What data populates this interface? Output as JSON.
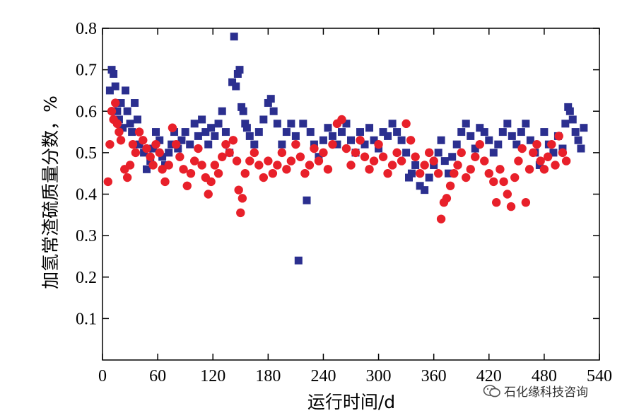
{
  "chart_data": {
    "type": "scatter",
    "title": "",
    "xlabel": "运行时间/d",
    "ylabel": "加氢常渣硫质量分数，%",
    "xlim": [
      0,
      540
    ],
    "ylim": [
      0,
      0.8
    ],
    "x_ticks": [
      "0",
      "60",
      "120",
      "180",
      "240",
      "300",
      "360",
      "420",
      "480",
      "540"
    ],
    "y_ticks": [
      "0.1",
      "0.2",
      "0.3",
      "0.4",
      "0.5",
      "0.6",
      "0.7",
      "0.8"
    ],
    "grid": false,
    "legend": "none",
    "series": [
      {
        "marker": "square",
        "color": "#2b2f8f",
        "points": [
          [
            8,
            0.65
          ],
          [
            10,
            0.7
          ],
          [
            12,
            0.69
          ],
          [
            14,
            0.66
          ],
          [
            16,
            0.6
          ],
          [
            18,
            0.58
          ],
          [
            20,
            0.62
          ],
          [
            22,
            0.56
          ],
          [
            25,
            0.65
          ],
          [
            27,
            0.6
          ],
          [
            30,
            0.57
          ],
          [
            32,
            0.55
          ],
          [
            35,
            0.62
          ],
          [
            38,
            0.58
          ],
          [
            40,
            0.52
          ],
          [
            45,
            0.5
          ],
          [
            48,
            0.46
          ],
          [
            52,
            0.48
          ],
          [
            55,
            0.51
          ],
          [
            58,
            0.55
          ],
          [
            62,
            0.53
          ],
          [
            65,
            0.49
          ],
          [
            68,
            0.47
          ],
          [
            72,
            0.5
          ],
          [
            75,
            0.52
          ],
          [
            78,
            0.55
          ],
          [
            82,
            0.51
          ],
          [
            86,
            0.53
          ],
          [
            90,
            0.55
          ],
          [
            95,
            0.52
          ],
          [
            100,
            0.57
          ],
          [
            104,
            0.54
          ],
          [
            108,
            0.58
          ],
          [
            112,
            0.55
          ],
          [
            115,
            0.52
          ],
          [
            118,
            0.56
          ],
          [
            122,
            0.54
          ],
          [
            126,
            0.57
          ],
          [
            130,
            0.6
          ],
          [
            134,
            0.55
          ],
          [
            138,
            0.5
          ],
          [
            141,
            0.67
          ],
          [
            143,
            0.78
          ],
          [
            145,
            0.66
          ],
          [
            147,
            0.69
          ],
          [
            149,
            0.7
          ],
          [
            151,
            0.61
          ],
          [
            153,
            0.6
          ],
          [
            155,
            0.57
          ],
          [
            157,
            0.56
          ],
          [
            160,
            0.54
          ],
          [
            165,
            0.52
          ],
          [
            170,
            0.55
          ],
          [
            175,
            0.58
          ],
          [
            180,
            0.62
          ],
          [
            183,
            0.63
          ],
          [
            186,
            0.6
          ],
          [
            190,
            0.57
          ],
          [
            195,
            0.52
          ],
          [
            200,
            0.55
          ],
          [
            205,
            0.57
          ],
          [
            210,
            0.54
          ],
          [
            213,
            0.24
          ],
          [
            218,
            0.57
          ],
          [
            222,
            0.385
          ],
          [
            226,
            0.55
          ],
          [
            230,
            0.52
          ],
          [
            235,
            0.49
          ],
          [
            240,
            0.53
          ],
          [
            245,
            0.56
          ],
          [
            250,
            0.54
          ],
          [
            255,
            0.52
          ],
          [
            260,
            0.55
          ],
          [
            265,
            0.57
          ],
          [
            270,
            0.53
          ],
          [
            275,
            0.5
          ],
          [
            280,
            0.55
          ],
          [
            285,
            0.52
          ],
          [
            290,
            0.56
          ],
          [
            295,
            0.53
          ],
          [
            300,
            0.51
          ],
          [
            305,
            0.55
          ],
          [
            310,
            0.54
          ],
          [
            315,
            0.57
          ],
          [
            320,
            0.55
          ],
          [
            325,
            0.53
          ],
          [
            330,
            0.5
          ],
          [
            333,
            0.44
          ],
          [
            336,
            0.45
          ],
          [
            340,
            0.47
          ],
          [
            345,
            0.42
          ],
          [
            350,
            0.41
          ],
          [
            355,
            0.44
          ],
          [
            360,
            0.47
          ],
          [
            365,
            0.5
          ],
          [
            368,
            0.53
          ],
          [
            372,
            0.48
          ],
          [
            376,
            0.45
          ],
          [
            380,
            0.49
          ],
          [
            385,
            0.52
          ],
          [
            390,
            0.55
          ],
          [
            395,
            0.57
          ],
          [
            400,
            0.54
          ],
          [
            405,
            0.51
          ],
          [
            410,
            0.56
          ],
          [
            415,
            0.55
          ],
          [
            420,
            0.53
          ],
          [
            425,
            0.5
          ],
          [
            430,
            0.52
          ],
          [
            435,
            0.55
          ],
          [
            440,
            0.57
          ],
          [
            445,
            0.54
          ],
          [
            450,
            0.52
          ],
          [
            455,
            0.55
          ],
          [
            460,
            0.57
          ],
          [
            465,
            0.53
          ],
          [
            470,
            0.5
          ],
          [
            475,
            0.47
          ],
          [
            480,
            0.55
          ],
          [
            485,
            0.52
          ],
          [
            490,
            0.5
          ],
          [
            495,
            0.54
          ],
          [
            500,
            0.51
          ],
          [
            503,
            0.57
          ],
          [
            506,
            0.61
          ],
          [
            508,
            0.6
          ],
          [
            511,
            0.58
          ],
          [
            514,
            0.55
          ],
          [
            517,
            0.53
          ],
          [
            520,
            0.51
          ],
          [
            523,
            0.56
          ]
        ]
      },
      {
        "marker": "circle",
        "color": "#e8202a",
        "points": [
          [
            6,
            0.43
          ],
          [
            8,
            0.52
          ],
          [
            10,
            0.6
          ],
          [
            12,
            0.58
          ],
          [
            14,
            0.62
          ],
          [
            16,
            0.57
          ],
          [
            18,
            0.55
          ],
          [
            20,
            0.53
          ],
          [
            24,
            0.46
          ],
          [
            27,
            0.44
          ],
          [
            30,
            0.47
          ],
          [
            33,
            0.52
          ],
          [
            36,
            0.5
          ],
          [
            40,
            0.55
          ],
          [
            44,
            0.53
          ],
          [
            48,
            0.51
          ],
          [
            52,
            0.49
          ],
          [
            55,
            0.47
          ],
          [
            58,
            0.52
          ],
          [
            62,
            0.5
          ],
          [
            65,
            0.46
          ],
          [
            68,
            0.43
          ],
          [
            72,
            0.47
          ],
          [
            76,
            0.56
          ],
          [
            80,
            0.52
          ],
          [
            84,
            0.49
          ],
          [
            88,
            0.46
          ],
          [
            92,
            0.42
          ],
          [
            96,
            0.45
          ],
          [
            100,
            0.48
          ],
          [
            104,
            0.51
          ],
          [
            108,
            0.47
          ],
          [
            112,
            0.44
          ],
          [
            115,
            0.4
          ],
          [
            118,
            0.43
          ],
          [
            122,
            0.47
          ],
          [
            126,
            0.45
          ],
          [
            130,
            0.49
          ],
          [
            134,
            0.52
          ],
          [
            138,
            0.5
          ],
          [
            142,
            0.53
          ],
          [
            146,
            0.48
          ],
          [
            148,
            0.41
          ],
          [
            150,
            0.355
          ],
          [
            152,
            0.39
          ],
          [
            155,
            0.45
          ],
          [
            160,
            0.48
          ],
          [
            165,
            0.5
          ],
          [
            170,
            0.47
          ],
          [
            175,
            0.44
          ],
          [
            180,
            0.48
          ],
          [
            185,
            0.45
          ],
          [
            190,
            0.47
          ],
          [
            195,
            0.5
          ],
          [
            200,
            0.46
          ],
          [
            205,
            0.48
          ],
          [
            210,
            0.52
          ],
          [
            215,
            0.49
          ],
          [
            220,
            0.45
          ],
          [
            225,
            0.47
          ],
          [
            230,
            0.51
          ],
          [
            235,
            0.48
          ],
          [
            240,
            0.5
          ],
          [
            245,
            0.46
          ],
          [
            250,
            0.52
          ],
          [
            255,
            0.57
          ],
          [
            260,
            0.58
          ],
          [
            265,
            0.51
          ],
          [
            270,
            0.47
          ],
          [
            275,
            0.5
          ],
          [
            280,
            0.53
          ],
          [
            285,
            0.49
          ],
          [
            290,
            0.46
          ],
          [
            295,
            0.48
          ],
          [
            300,
            0.52
          ],
          [
            305,
            0.49
          ],
          [
            310,
            0.45
          ],
          [
            315,
            0.47
          ],
          [
            320,
            0.5
          ],
          [
            325,
            0.48
          ],
          [
            330,
            0.57
          ],
          [
            335,
            0.53
          ],
          [
            340,
            0.49
          ],
          [
            345,
            0.45
          ],
          [
            350,
            0.47
          ],
          [
            355,
            0.5
          ],
          [
            360,
            0.48
          ],
          [
            365,
            0.45
          ],
          [
            368,
            0.34
          ],
          [
            371,
            0.38
          ],
          [
            374,
            0.39
          ],
          [
            378,
            0.42
          ],
          [
            382,
            0.45
          ],
          [
            386,
            0.47
          ],
          [
            390,
            0.5
          ],
          [
            395,
            0.44
          ],
          [
            400,
            0.46
          ],
          [
            405,
            0.49
          ],
          [
            410,
            0.52
          ],
          [
            415,
            0.48
          ],
          [
            420,
            0.45
          ],
          [
            425,
            0.43
          ],
          [
            428,
            0.38
          ],
          [
            432,
            0.46
          ],
          [
            436,
            0.43
          ],
          [
            440,
            0.4
          ],
          [
            444,
            0.37
          ],
          [
            448,
            0.44
          ],
          [
            452,
            0.48
          ],
          [
            456,
            0.51
          ],
          [
            460,
            0.38
          ],
          [
            464,
            0.46
          ],
          [
            468,
            0.5
          ],
          [
            472,
            0.52
          ],
          [
            476,
            0.48
          ],
          [
            480,
            0.46
          ],
          [
            484,
            0.49
          ],
          [
            488,
            0.52
          ],
          [
            492,
            0.47
          ],
          [
            496,
            0.54
          ],
          [
            500,
            0.5
          ],
          [
            504,
            0.48
          ]
        ]
      }
    ]
  },
  "watermark": {
    "icon": "wechat-icon",
    "text": "石化缘科技咨询"
  }
}
